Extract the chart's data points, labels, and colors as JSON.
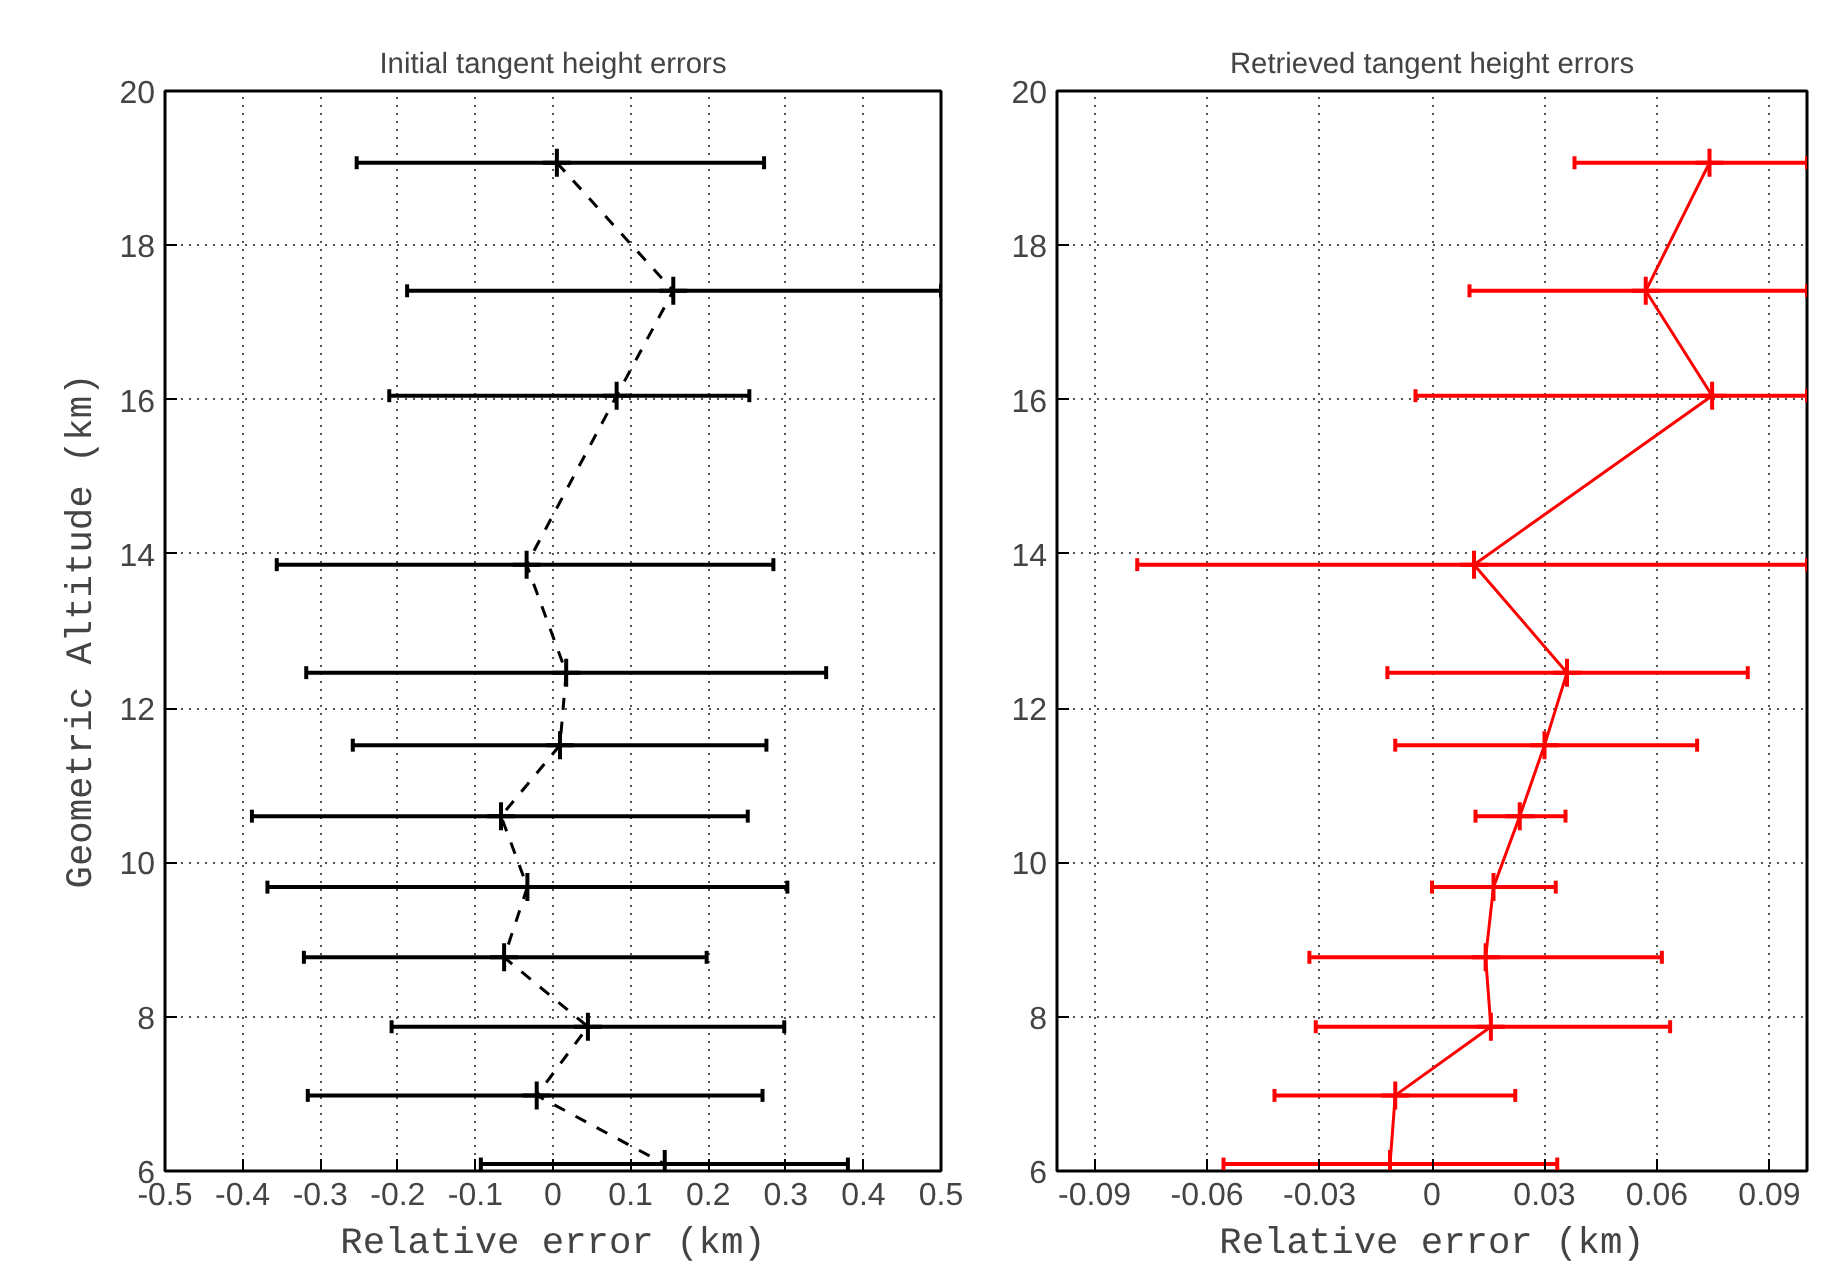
{
  "chart_data": [
    {
      "type": "line",
      "title": "Initial tangent height errors",
      "xlabel": "Relative error (km)",
      "ylabel": "Geometric Altitude (km)",
      "xlim": [
        -0.5,
        0.5
      ],
      "ylim": [
        6,
        20
      ],
      "xticks": [
        -0.5,
        -0.4,
        -0.3,
        -0.2,
        -0.1,
        0,
        0.1,
        0.2,
        0.3,
        0.4,
        0.5
      ],
      "yticks": [
        6,
        8,
        10,
        12,
        14,
        16,
        18,
        20
      ],
      "grid": true,
      "marker": "cross",
      "line_style": "dashed",
      "series": [
        {
          "color": "#000000",
          "x": [
            0.005,
            0.155,
            0.082,
            -0.034,
            0.017,
            0.009,
            -0.067,
            -0.033,
            -0.063,
            0.045,
            -0.021,
            0.144
          ],
          "values": [
            19.07,
            17.41,
            16.05,
            13.86,
            12.46,
            11.52,
            10.6,
            9.68,
            8.77,
            7.87,
            6.98,
            6.09
          ],
          "xerrors": [
            [
              -0.253,
              0.272
            ],
            [
              -0.188,
              0.5
            ],
            [
              -0.211,
              0.253
            ],
            [
              -0.356,
              0.284
            ],
            [
              -0.318,
              0.352
            ],
            [
              -0.258,
              0.275
            ],
            [
              -0.388,
              0.251
            ],
            [
              -0.368,
              0.302
            ],
            [
              -0.321,
              0.198
            ],
            [
              -0.208,
              0.298
            ],
            [
              -0.316,
              0.27
            ],
            [
              -0.093,
              0.38
            ]
          ]
        }
      ]
    },
    {
      "type": "line",
      "title": "Retrieved tangent height errors",
      "xlabel": "Relative error (km)",
      "xlim": [
        -0.1,
        0.1
      ],
      "ylim": [
        6,
        20
      ],
      "xticks": [
        -0.09,
        -0.06,
        -0.03,
        0,
        0.03,
        0.06,
        0.09
      ],
      "yticks": [
        6,
        8,
        10,
        12,
        14,
        16,
        18,
        20
      ],
      "grid": true,
      "marker": "cross",
      "line_style": "solid",
      "series": [
        {
          "color": "#ff0000",
          "x": [
            0.074,
            0.057,
            0.0747,
            0.0112,
            0.036,
            0.03,
            0.0234,
            0.0164,
            0.0143,
            0.0157,
            -0.0098,
            -0.0112
          ],
          "values": [
            19.07,
            17.41,
            16.05,
            13.86,
            12.46,
            11.52,
            10.6,
            9.68,
            8.77,
            7.87,
            6.98,
            6.09
          ],
          "xerrors": [
            [
              0.038,
              0.1
            ],
            [
              0.01,
              0.1
            ],
            [
              -0.0044,
              0.1
            ],
            [
              -0.0786,
              0.1
            ],
            [
              -0.0119,
              0.0842
            ],
            [
              -0.0098,
              0.0707
            ],
            [
              0.0116,
              0.0356
            ],
            [
              0,
              0.033
            ],
            [
              -0.0327,
              0.0613
            ],
            [
              -0.031,
              0.0635
            ],
            [
              -0.042,
              0.0222
            ],
            [
              -0.0556,
              0.0334
            ]
          ]
        }
      ]
    }
  ]
}
